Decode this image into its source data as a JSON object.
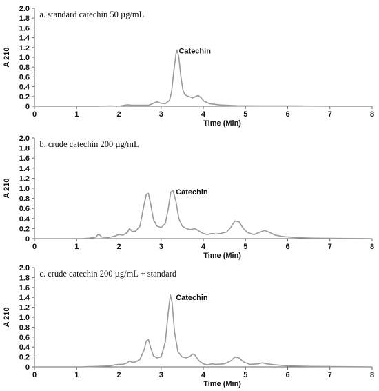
{
  "chart_data": [
    {
      "type": "line",
      "title": "a.  standard catechin 50 µg/mL",
      "xlabel": "Time (Min)",
      "ylabel": "A 210",
      "xlim": [
        0,
        8
      ],
      "ylim": [
        0,
        2.0
      ],
      "xticks": [
        "0",
        "1",
        "2",
        "3",
        "4",
        "5",
        "6",
        "7",
        "8"
      ],
      "yticks": [
        "0",
        "0.2",
        "0.4",
        "0.6",
        "0.8",
        "1.0",
        "1.2",
        "1.4",
        "1.6",
        "1.8",
        "2.0"
      ],
      "annotation": {
        "text": "Catechin",
        "x": 3.42,
        "y": 1.08
      },
      "series": [
        {
          "x": [
            0.0,
            1.5,
            1.8,
            2.0,
            2.2,
            2.3,
            2.5,
            2.7,
            2.8,
            2.9,
            3.0,
            3.1,
            3.2,
            3.25,
            3.3,
            3.35,
            3.38,
            3.42,
            3.47,
            3.52,
            3.57,
            3.65,
            3.75,
            3.82,
            3.88,
            3.94,
            4.02,
            4.15,
            4.4,
            4.8,
            5.5,
            6.2,
            7.0,
            8.0
          ],
          "y": [
            0.0,
            0.0,
            0.005,
            0.0,
            0.03,
            0.02,
            0.02,
            0.02,
            0.05,
            0.09,
            0.06,
            0.05,
            0.12,
            0.3,
            0.7,
            1.05,
            1.15,
            1.0,
            0.6,
            0.32,
            0.23,
            0.2,
            0.17,
            0.2,
            0.22,
            0.18,
            0.1,
            0.05,
            0.025,
            0.01,
            0.005,
            0.005,
            0.0,
            0.0
          ]
        }
      ]
    },
    {
      "type": "line",
      "title": "b.  crude catechin 200 µg/mL",
      "xlabel": "Time (Min)",
      "ylabel": "A 210",
      "xlim": [
        0,
        8
      ],
      "ylim": [
        0,
        2.0
      ],
      "xticks": [
        "0",
        "1",
        "2",
        "3",
        "4",
        "5",
        "6",
        "7",
        "8"
      ],
      "yticks": [
        "0",
        "0.2",
        "0.4",
        "0.6",
        "0.8",
        "1.0",
        "1.2",
        "1.4",
        "1.6",
        "1.8",
        "2.0"
      ],
      "annotation": {
        "text": "Catechin",
        "x": 3.35,
        "y": 0.88
      },
      "series": [
        {
          "x": [
            0.0,
            1.1,
            1.3,
            1.45,
            1.52,
            1.6,
            1.75,
            1.9,
            2.0,
            2.1,
            2.2,
            2.25,
            2.32,
            2.4,
            2.5,
            2.58,
            2.65,
            2.7,
            2.75,
            2.82,
            2.9,
            3.0,
            3.1,
            3.17,
            3.23,
            3.28,
            3.35,
            3.42,
            3.5,
            3.6,
            3.7,
            3.8,
            3.9,
            4.0,
            4.1,
            4.2,
            4.3,
            4.4,
            4.55,
            4.65,
            4.75,
            4.85,
            4.95,
            5.05,
            5.2,
            5.35,
            5.45,
            5.55,
            5.7,
            5.9,
            6.2,
            6.6,
            7.0,
            8.0
          ],
          "y": [
            0.0,
            0.0,
            0.01,
            0.03,
            0.09,
            0.03,
            0.02,
            0.05,
            0.08,
            0.07,
            0.12,
            0.2,
            0.14,
            0.15,
            0.25,
            0.6,
            0.88,
            0.9,
            0.7,
            0.38,
            0.25,
            0.22,
            0.3,
            0.6,
            0.92,
            0.96,
            0.75,
            0.4,
            0.25,
            0.2,
            0.18,
            0.2,
            0.15,
            0.1,
            0.08,
            0.1,
            0.09,
            0.1,
            0.13,
            0.22,
            0.35,
            0.33,
            0.2,
            0.12,
            0.08,
            0.13,
            0.16,
            0.13,
            0.07,
            0.04,
            0.02,
            0.01,
            0.005,
            0.0
          ]
        }
      ]
    },
    {
      "type": "line",
      "title": "c.  crude catechin 200 µg/mL + standard",
      "xlabel": "Time (Min)",
      "ylabel": "A 210",
      "xlim": [
        0,
        8
      ],
      "ylim": [
        0,
        2.0
      ],
      "xticks": [
        "0",
        "1",
        "2",
        "3",
        "4",
        "5",
        "6",
        "7",
        "8"
      ],
      "yticks": [
        "0",
        "0.2",
        "0.4",
        "0.6",
        "0.8",
        "1.0",
        "1.2",
        "1.4",
        "1.6",
        "1.8",
        "2.0"
      ],
      "annotation": {
        "text": "Catechin",
        "x": 3.35,
        "y": 1.35
      },
      "series": [
        {
          "x": [
            0.0,
            1.1,
            1.5,
            1.8,
            1.9,
            2.0,
            2.1,
            2.2,
            2.25,
            2.32,
            2.4,
            2.5,
            2.6,
            2.65,
            2.7,
            2.75,
            2.82,
            2.9,
            3.0,
            3.1,
            3.17,
            3.22,
            3.26,
            3.32,
            3.4,
            3.5,
            3.6,
            3.7,
            3.75,
            3.8,
            3.9,
            4.0,
            4.1,
            4.2,
            4.3,
            4.5,
            4.65,
            4.75,
            4.85,
            4.95,
            5.1,
            5.3,
            5.4,
            5.5,
            5.7,
            6.0,
            6.5,
            7.0,
            8.0
          ],
          "y": [
            0.0,
            0.0,
            0.01,
            0.02,
            0.04,
            0.05,
            0.05,
            0.08,
            0.12,
            0.09,
            0.1,
            0.15,
            0.35,
            0.52,
            0.55,
            0.4,
            0.22,
            0.18,
            0.2,
            0.5,
            1.1,
            1.45,
            1.3,
            0.7,
            0.3,
            0.2,
            0.18,
            0.22,
            0.26,
            0.24,
            0.12,
            0.06,
            0.04,
            0.06,
            0.05,
            0.06,
            0.12,
            0.2,
            0.18,
            0.1,
            0.05,
            0.06,
            0.08,
            0.06,
            0.04,
            0.02,
            0.01,
            0.005,
            0.0
          ]
        }
      ]
    }
  ]
}
